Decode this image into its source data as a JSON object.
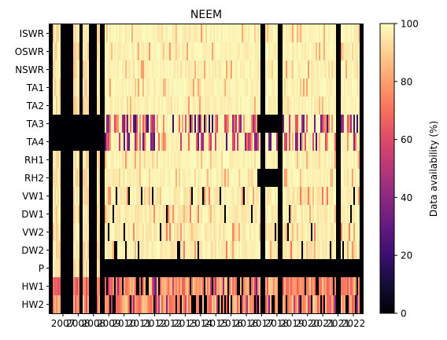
{
  "chart_data": {
    "type": "heatmap",
    "title": "NEEM",
    "xlabel": "",
    "ylabel": "",
    "rows": [
      "ISWR",
      "OSWR",
      "NSWR",
      "TA1",
      "TA2",
      "TA3",
      "TA4",
      "RH1",
      "RH2",
      "VW1",
      "DW1",
      "VW2",
      "DW2",
      "P",
      "HW1",
      "HW2"
    ],
    "x_ticks": [
      "2007",
      "2008",
      "2008",
      "2009",
      "2010",
      "2011",
      "2012",
      "2012",
      "2013",
      "2014",
      "2015",
      "2016",
      "2016",
      "2017",
      "2018",
      "2019",
      "2020",
      "2021",
      "2021",
      "2022"
    ],
    "colorbar": {
      "label": "Data availability (%)",
      "ticks": [
        0,
        20,
        40,
        60,
        80,
        100
      ],
      "range": [
        0,
        100
      ],
      "colormap": "magma"
    },
    "row_patterns": {
      "radiation_and_temp": "mostly 100% after 2009 with a few partial months",
      "TA3_TA4": "0% before 2009, alternating 20-90% after, gap in 2018",
      "RH2": "0% in 2018 gap",
      "VW1_VW2": "mostly 100% with scattered 0% months",
      "P": "0% after 2009",
      "HW1_HW2": "60-90% with many 0% months"
    }
  }
}
